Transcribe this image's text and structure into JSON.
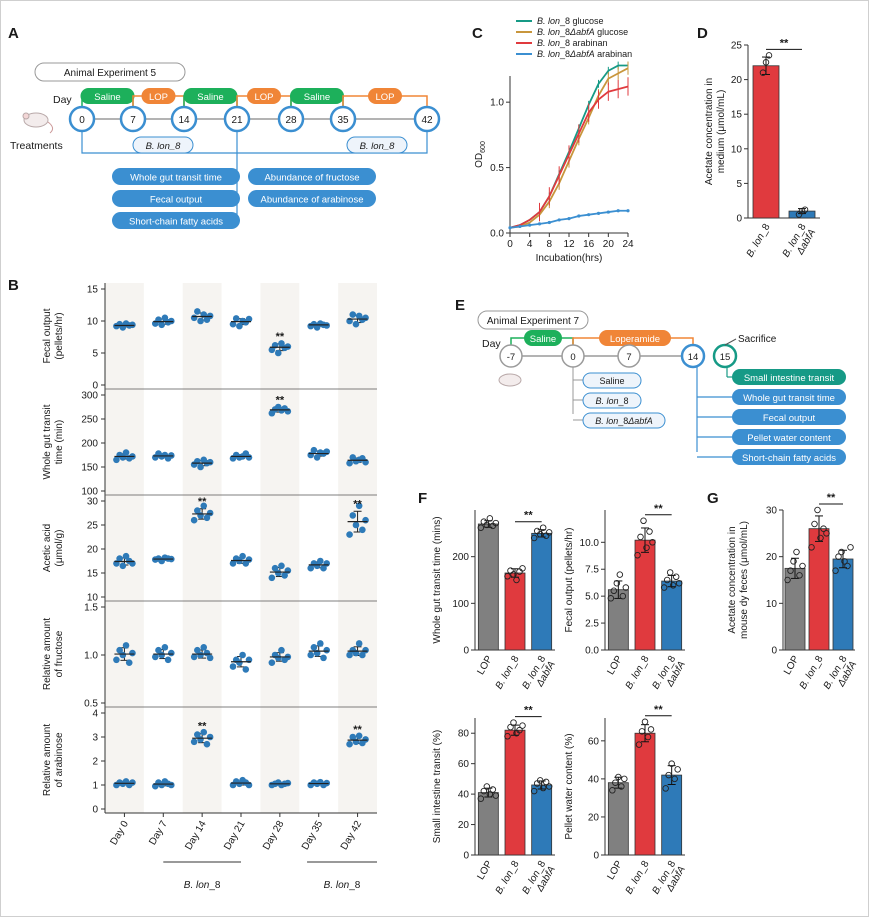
{
  "colors": {
    "blue": "#2e7ab8",
    "red": "#e03a3e",
    "gray": "#808080",
    "green": "#1db05b",
    "orange": "#f08537",
    "teal": "#169a86",
    "lightblue": "#3b8fd1",
    "brown": "#c8963c"
  },
  "panel_labels": {
    "a": "A",
    "b": "B",
    "c": "C",
    "d": "D",
    "e": "E",
    "f": "F",
    "g": "G"
  },
  "panel_A": {
    "title": "Animal Experiment 5",
    "day_label": "Day",
    "treatments_label": "Treatments",
    "days": [
      "0",
      "7",
      "14",
      "21",
      "28",
      "35",
      "42"
    ],
    "segments": [
      "Saline",
      "LOP",
      "Saline",
      "LOP",
      "Saline",
      "LOP"
    ],
    "strain_a": "B. lon_8",
    "strain_b": "B. lon_8",
    "outcomes_left": [
      "Whole gut transit time",
      "Fecal output",
      "Short-chain fatty acids"
    ],
    "outcomes_right": [
      "Abundance of fructose",
      "Abundance of arabinose"
    ]
  },
  "panel_B": {
    "ylabels": [
      [
        "Fecal output",
        "(pellets/hr)"
      ],
      [
        "Whole gut transit",
        "time (min)"
      ],
      [
        "Acetic acid",
        "(μmol/g)"
      ],
      [
        "Relative amount",
        "of fructose"
      ],
      [
        "Relative amount",
        "of arabinose"
      ]
    ],
    "categories": [
      "Day 0",
      "Day 7",
      "Day 14",
      "Day 21",
      "Day 28",
      "Day 35",
      "Day 42"
    ],
    "underline_a": "B. lon_8",
    "underline_b": "B. lon_8"
  },
  "panel_C": {
    "xlabel": "Incubation(hrs)",
    "ylabel": "OD",
    "ylabel_sub": "600",
    "legend": [
      {
        "name": "B. lon_8 glucose",
        "i": "B. lon",
        "r": "_8 glucose"
      },
      {
        "name": "B. lon_8ΔabfA glucose",
        "i": "B. lon",
        "r": "_8",
        "i2": "ΔabfA",
        "r2": " glucose"
      },
      {
        "name": "B. lon_8 arabinan",
        "i": "B. lon",
        "r": "_8 arabinan"
      },
      {
        "name": "B. lon_8ΔabfA arabinan",
        "i": "B. lon",
        "r": "_8",
        "i2": "ΔabfA",
        "r2": " arabinan"
      }
    ]
  },
  "panel_D": {
    "ylabel": [
      "Acetate concentration in",
      "medium (μmol/mL)"
    ],
    "cat1": "B. lon_8",
    "cat2a": "B. lon_8",
    "cat2b": "ΔabfA",
    "sig": "**"
  },
  "panel_E": {
    "title": "Animal Experiment 7",
    "day_label": "Day",
    "days": [
      "-7",
      "0",
      "7",
      "14",
      "15"
    ],
    "segments": [
      "Saline",
      "Loperamide"
    ],
    "sacrifice": "Sacrifice",
    "groups": [
      "Saline",
      "B. lon_8",
      "B. lon_8ΔabfA"
    ],
    "outcomes": [
      "Small intestine transit",
      "Whole gut transit time",
      "Fecal output",
      "Pellet water content",
      "Short-chain fatty acids"
    ]
  },
  "panel_F": {
    "ylabels": [
      "Whole gut transit time (mins)",
      "Fecal output (pellets/hr)",
      "Small intestine transit (%)",
      "Pellet water content (%)"
    ],
    "cats": [
      "LOP",
      "B. lon_8",
      "B. lon_8",
      "ΔabfA"
    ]
  },
  "panel_G": {
    "ylabel": [
      "Acetate concentration in",
      "mouse dy feces (μmol/mL)"
    ]
  },
  "chart_data": [
    {
      "panel": "B1",
      "type": "scatter",
      "ylabel": "Fecal output (pellets/hr)",
      "ylim": [
        0,
        15
      ],
      "yticks": [
        0,
        5,
        10,
        15
      ],
      "categories": [
        "Day 0",
        "Day 7",
        "Day 14",
        "Day 21",
        "Day 28",
        "Day 35",
        "Day 42"
      ],
      "series": [
        {
          "values": [
            [
              9.2,
              9.5,
              9.0,
              9.6,
              9.3,
              9.4
            ],
            [
              9.6,
              10.2,
              9.4,
              10.5,
              9.8,
              10.0
            ],
            [
              10.5,
              11.5,
              10.0,
              11.0,
              10.2,
              10.8
            ],
            [
              9.5,
              10.4,
              9.2,
              10.0,
              9.8,
              10.3
            ],
            [
              5.5,
              6.2,
              5.0,
              6.5,
              5.8,
              6.0
            ],
            [
              9.2,
              9.5,
              9.0,
              9.6,
              9.4,
              9.3
            ],
            [
              10.0,
              11.0,
              9.5,
              10.8,
              10.2,
              10.5
            ]
          ]
        }
      ],
      "means": [
        9.3,
        9.9,
        10.7,
        9.9,
        5.9,
        9.4,
        10.3
      ],
      "sig": [
        "",
        "",
        "",
        "",
        "**",
        "",
        ""
      ]
    },
    {
      "panel": "B2",
      "type": "scatter",
      "ylabel": "Whole gut transit time (min)",
      "ylim": [
        100,
        300
      ],
      "yticks": [
        100,
        150,
        200,
        250,
        300
      ],
      "categories": [
        "Day 0",
        "Day 7",
        "Day 14",
        "Day 21",
        "Day 28",
        "Day 35",
        "Day 42"
      ],
      "series": [
        {
          "values": [
            [
              165,
              175,
              170,
              180,
              168,
              172
            ],
            [
              170,
              178,
              172,
              175,
              168,
              174
            ],
            [
              155,
              162,
              150,
              165,
              158,
              160
            ],
            [
              168,
              175,
              170,
              172,
              178,
              170
            ],
            [
              262,
              270,
              275,
              268,
              272,
              266
            ],
            [
              175,
              185,
              170,
              180,
              178,
              182
            ],
            [
              158,
              170,
              162,
              165,
              168,
              160
            ]
          ]
        }
      ],
      "means": [
        172,
        173,
        158,
        172,
        269,
        178,
        164
      ],
      "sig": [
        "",
        "",
        "",
        "",
        "**",
        "",
        ""
      ]
    },
    {
      "panel": "B3",
      "type": "scatter",
      "ylabel": "Acetic acid (μmol/g)",
      "ylim": [
        10,
        30
      ],
      "yticks": [
        10,
        15,
        20,
        25,
        30
      ],
      "categories": [
        "Day 0",
        "Day 7",
        "Day 14",
        "Day 21",
        "Day 28",
        "Day 35",
        "Day 42"
      ],
      "series": [
        {
          "values": [
            [
              17,
              18,
              16.5,
              18.5,
              17.5,
              17
            ],
            [
              17.8,
              18,
              17.5,
              18.2,
              18,
              17.9
            ],
            [
              26,
              28,
              27,
              29,
              26.5,
              27.5
            ],
            [
              17,
              18,
              17.5,
              18.5,
              17,
              17.8
            ],
            [
              14,
              16,
              15,
              16.5,
              14.5,
              15.5
            ],
            [
              16,
              17,
              16.5,
              17.5,
              16,
              17
            ],
            [
              23,
              27,
              25,
              29,
              24,
              26
            ]
          ]
        }
      ],
      "means": [
        17.4,
        17.9,
        27.3,
        17.6,
        15.2,
        16.7,
        25.7
      ],
      "sig": [
        "",
        "",
        "**",
        "",
        "",
        "",
        "**"
      ]
    },
    {
      "panel": "B4",
      "type": "scatter",
      "ylabel": "Relative amount of fructose",
      "ylim": [
        0.5,
        1.5
      ],
      "yticks": [
        0.5,
        1.0,
        1.5
      ],
      "categories": [
        "Day 0",
        "Day 7",
        "Day 14",
        "Day 21",
        "Day 28",
        "Day 35",
        "Day 42"
      ],
      "series": [
        {
          "values": [
            [
              0.95,
              1.05,
              1.0,
              1.1,
              0.92,
              1.02
            ],
            [
              0.98,
              1.05,
              1.0,
              1.08,
              0.95,
              1.02
            ],
            [
              0.98,
              1.05,
              1.0,
              1.08,
              1.02,
              0.97
            ],
            [
              0.88,
              0.95,
              0.92,
              1.0,
              0.85,
              0.95
            ],
            [
              0.92,
              1.0,
              0.97,
              1.05,
              0.95,
              0.98
            ],
            [
              1.0,
              1.08,
              1.02,
              1.12,
              0.97,
              1.05
            ],
            [
              1.0,
              1.05,
              1.02,
              1.12,
              1.0,
              1.05
            ]
          ]
        }
      ],
      "means": [
        1.01,
        1.01,
        1.01,
        0.93,
        0.98,
        1.04,
        1.04
      ],
      "sig": [
        "",
        "",
        "",
        "",
        "",
        "",
        ""
      ]
    },
    {
      "panel": "B5",
      "type": "scatter",
      "ylabel": "Relative amount of arabinose",
      "ylim": [
        0,
        4
      ],
      "yticks": [
        0,
        1,
        2,
        3,
        4
      ],
      "categories": [
        "Day 0",
        "Day 7",
        "Day 14",
        "Day 21",
        "Day 28",
        "Day 35",
        "Day 42"
      ],
      "series": [
        {
          "values": [
            [
              1.0,
              1.1,
              1.05,
              1.15,
              1.0,
              1.1
            ],
            [
              0.95,
              1.1,
              1.0,
              1.15,
              1.05,
              1.0
            ],
            [
              2.8,
              3.1,
              2.9,
              3.2,
              2.7,
              3.0
            ],
            [
              1.0,
              1.15,
              1.05,
              1.2,
              1.1,
              1.0
            ],
            [
              1.0,
              1.05,
              1.1,
              1.0,
              1.05,
              1.08
            ],
            [
              1.0,
              1.1,
              1.05,
              1.12,
              1.0,
              1.08
            ],
            [
              2.7,
              3.0,
              2.8,
              3.05,
              2.75,
              2.9
            ]
          ]
        }
      ],
      "means": [
        1.07,
        1.04,
        2.95,
        1.08,
        1.05,
        1.06,
        2.87
      ],
      "sig": [
        "",
        "",
        "**",
        "",
        "",
        "",
        "**"
      ]
    },
    {
      "panel": "C",
      "type": "line",
      "xlabel": "Incubation(hrs)",
      "ylabel": "OD600",
      "xlim": [
        0,
        24
      ],
      "ylim": [
        0,
        1.2
      ],
      "xticks": [
        0,
        4,
        8,
        12,
        16,
        20,
        24
      ],
      "yticks": [
        0,
        0.5,
        1.0
      ],
      "x": [
        0,
        2,
        4,
        6,
        8,
        10,
        12,
        14,
        16,
        18,
        20,
        22,
        24
      ],
      "series": [
        {
          "name": "B. lon_8 glucose",
          "values": [
            0.04,
            0.06,
            0.1,
            0.16,
            0.28,
            0.45,
            0.62,
            0.8,
            0.98,
            1.14,
            1.24,
            1.28,
            1.28
          ]
        },
        {
          "name": "B. lon_8ΔabfA glucose",
          "values": [
            0.04,
            0.05,
            0.08,
            0.14,
            0.24,
            0.38,
            0.55,
            0.72,
            0.88,
            1.05,
            1.18,
            1.22,
            1.26
          ]
        },
        {
          "name": "B. lon_8 arabinan",
          "values": [
            0.04,
            0.06,
            0.1,
            0.16,
            0.28,
            0.44,
            0.6,
            0.76,
            0.92,
            1.02,
            1.08,
            1.1,
            1.12
          ]
        },
        {
          "name": "B. lon_8ΔabfA arabinan",
          "values": [
            0.04,
            0.05,
            0.06,
            0.07,
            0.08,
            0.1,
            0.11,
            0.13,
            0.14,
            0.15,
            0.16,
            0.17,
            0.17
          ]
        }
      ]
    },
    {
      "panel": "D",
      "type": "bar",
      "ylabel": "Acetate concentration in medium (μmol/mL)",
      "ylim": [
        0,
        25
      ],
      "yticks": [
        0,
        5,
        10,
        15,
        20,
        25
      ],
      "categories": [
        "B. lon_8",
        "B. lon_8 ΔabfA"
      ],
      "values": [
        22,
        1
      ],
      "points": [
        [
          21,
          22.5,
          23.5
        ],
        [
          0.5,
          1,
          1.2
        ]
      ],
      "sig": "**"
    },
    {
      "panel": "F1",
      "type": "bar",
      "ylabel": "Whole gut transit time (mins)",
      "ylim": [
        0,
        300
      ],
      "yticks": [
        0,
        100,
        200
      ],
      "categories": [
        "LOP",
        "B. lon_8",
        "B. lon_8 ΔabfA"
      ],
      "values": [
        270,
        165,
        250
      ],
      "points": [
        [
          262,
          275,
          268,
          282,
          266,
          272
        ],
        [
          158,
          170,
          162,
          150,
          168,
          175
        ],
        [
          240,
          255,
          248,
          262,
          245,
          252
        ]
      ],
      "sig": "**"
    },
    {
      "panel": "F2",
      "type": "bar",
      "ylabel": "Fecal output (pellets/hr)",
      "ylim": [
        0,
        13
      ],
      "yticks": [
        0.0,
        2.5,
        5.0,
        7.5,
        10.0
      ],
      "categories": [
        "LOP",
        "B. lon_8",
        "B. lon_8 ΔabfA"
      ],
      "values": [
        5.6,
        10.2,
        6.4
      ],
      "points": [
        [
          4.8,
          5.5,
          6.2,
          7.0,
          5.0,
          5.8
        ],
        [
          8.8,
          10.5,
          12.0,
          9.5,
          11.0,
          10.0
        ],
        [
          5.8,
          6.5,
          7.2,
          6.0,
          6.8,
          6.2
        ]
      ],
      "sig": "**"
    },
    {
      "panel": "G",
      "type": "bar",
      "ylabel": "Acetate concentration in mouse dy feces (μmol/mL)",
      "ylim": [
        0,
        30
      ],
      "yticks": [
        0,
        10,
        20,
        30
      ],
      "categories": [
        "LOP",
        "B. lon_8",
        "B. lon_8 ΔabfA"
      ],
      "values": [
        17.5,
        26,
        19.5
      ],
      "points": [
        [
          15,
          17,
          19,
          21,
          16,
          18
        ],
        [
          22,
          27,
          30,
          24,
          26,
          25
        ],
        [
          17,
          20,
          21,
          19,
          18,
          22
        ]
      ],
      "sig": "**"
    },
    {
      "panel": "F3",
      "type": "bar",
      "ylabel": "Small intestine transit (%)",
      "ylim": [
        0,
        90
      ],
      "yticks": [
        0,
        20,
        40,
        60,
        80
      ],
      "categories": [
        "LOP",
        "B. lon_8",
        "B. lon_8 ΔabfA"
      ],
      "values": [
        41,
        82,
        46
      ],
      "points": [
        [
          37,
          42,
          45,
          40,
          43,
          39
        ],
        [
          78,
          84,
          87,
          80,
          82,
          85
        ],
        [
          42,
          47,
          49,
          44,
          48,
          45
        ]
      ],
      "sig": "**"
    },
    {
      "panel": "F4",
      "type": "bar",
      "ylabel": "Pellet water content (%)",
      "ylim": [
        0,
        72
      ],
      "yticks": [
        0,
        20,
        40,
        60
      ],
      "categories": [
        "LOP",
        "B. lon_8",
        "B. lon_8 ΔabfA"
      ],
      "values": [
        38,
        64,
        42
      ],
      "points": [
        [
          34,
          38,
          41,
          36,
          40
        ],
        [
          58,
          65,
          70,
          62,
          66
        ],
        [
          35,
          42,
          48,
          40,
          45
        ]
      ],
      "sig": "**"
    }
  ]
}
